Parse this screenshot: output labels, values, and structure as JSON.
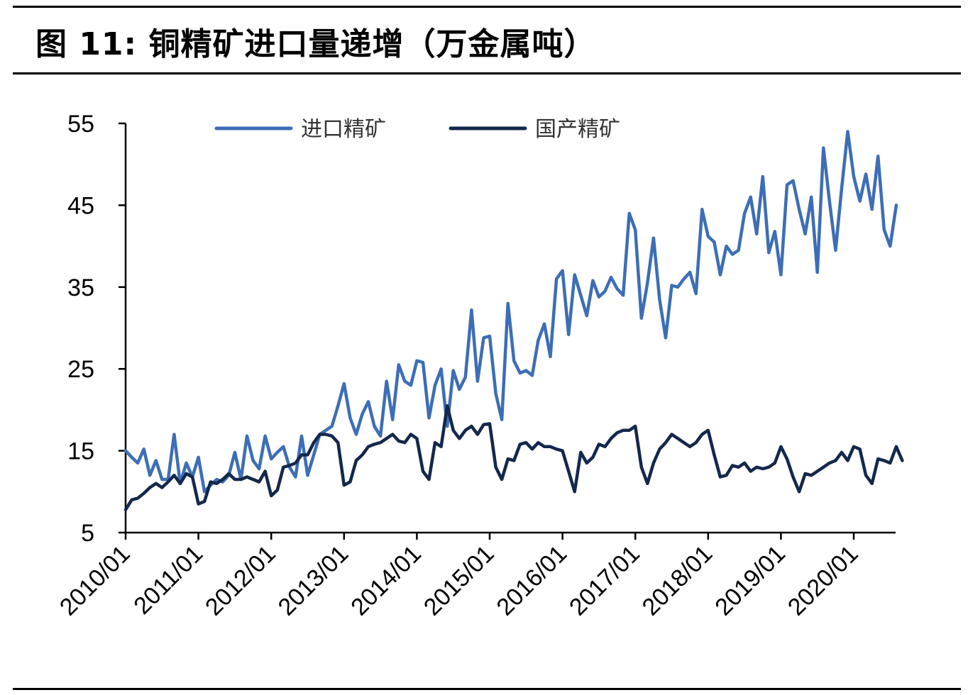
{
  "figure": {
    "title": "图 11:  铜精矿进口量递增（万金属吨）"
  },
  "colors": {
    "imported": "#3D6EB5",
    "domestic": "#13284B",
    "axis": "#000000"
  },
  "chart_data": {
    "type": "line",
    "title": "图 11:  铜精矿进口量递增（万金属吨）",
    "xlabel": "",
    "ylabel": "",
    "ylim": [
      5,
      55
    ],
    "yticks": [
      5,
      15,
      25,
      35,
      45,
      55
    ],
    "x_start": "2010/01",
    "x_end": "2020/07",
    "xtick_labels": [
      "2010/01",
      "2011/01",
      "2012/01",
      "2013/01",
      "2014/01",
      "2015/01",
      "2016/01",
      "2017/01",
      "2018/01",
      "2019/01",
      "2020/01"
    ],
    "legend": {
      "position": "top-left"
    },
    "grid": false,
    "series": [
      {
        "name": "进口精矿",
        "color": "#3D6EB5",
        "values": [
          15.0,
          14.2,
          13.5,
          15.2,
          12.0,
          13.8,
          11.5,
          11.5,
          17.0,
          11.0,
          13.5,
          11.8,
          14.2,
          10.0,
          10.8,
          11.5,
          11.2,
          12.0,
          14.8,
          11.5,
          16.8,
          13.8,
          12.8,
          16.8,
          14.0,
          14.8,
          15.5,
          13.0,
          11.8,
          16.8,
          12.0,
          14.5,
          17.0,
          17.5,
          18.0,
          20.5,
          23.2,
          19.0,
          17.0,
          19.5,
          21.0,
          18.0,
          16.8,
          23.5,
          18.8,
          25.5,
          23.5,
          23.0,
          26.0,
          25.8,
          19.0,
          23.0,
          25.0,
          18.0,
          24.8,
          22.5,
          24.0,
          32.2,
          23.5,
          28.8,
          29.0,
          22.0,
          18.8,
          33.0,
          26.0,
          24.5,
          24.8,
          24.2,
          28.5,
          30.5,
          26.5,
          36.0,
          37.0,
          29.2,
          36.5,
          34.0,
          31.5,
          35.8,
          33.8,
          34.5,
          36.2,
          34.8,
          34.0,
          44.0,
          42.0,
          31.2,
          35.5,
          41.0,
          33.5,
          28.8,
          35.2,
          35.0,
          36.0,
          36.8,
          34.2,
          44.5,
          41.2,
          40.5,
          36.5,
          40.0,
          39.0,
          39.5,
          44.0,
          46.0,
          41.5,
          48.5,
          39.2,
          41.8,
          36.5,
          47.5,
          48.0,
          44.5,
          41.5,
          46.0,
          36.8,
          52.0,
          45.5,
          39.5,
          47.0,
          54.0,
          48.5,
          45.5,
          48.8,
          44.5,
          51.0,
          42.0,
          40.0,
          45.0
        ]
      },
      {
        "name": "国产精矿",
        "color": "#13284B",
        "values": [
          7.8,
          9.0,
          9.2,
          9.8,
          10.5,
          11.0,
          10.5,
          11.2,
          12.0,
          11.0,
          12.2,
          11.8,
          8.5,
          8.8,
          11.2,
          11.0,
          11.5,
          12.2,
          11.5,
          11.5,
          11.8,
          11.5,
          11.2,
          12.5,
          9.5,
          10.2,
          13.0,
          13.2,
          13.5,
          14.5,
          14.5,
          16.0,
          17.0,
          17.0,
          16.8,
          16.0,
          10.8,
          11.2,
          13.8,
          14.5,
          15.5,
          15.8,
          16.0,
          16.5,
          17.0,
          16.2,
          16.0,
          17.0,
          16.5,
          12.5,
          11.5,
          16.0,
          15.5,
          20.5,
          17.5,
          16.5,
          17.5,
          18.0,
          17.0,
          18.2,
          18.3,
          13.0,
          11.5,
          14.0,
          13.8,
          15.8,
          16.0,
          15.2,
          16.0,
          15.5,
          15.5,
          15.2,
          15.0,
          12.5,
          10.0,
          14.8,
          13.5,
          14.2,
          15.8,
          15.5,
          16.5,
          17.2,
          17.5,
          17.5,
          18.0,
          13.0,
          11.0,
          13.5,
          15.2,
          16.0,
          17.0,
          16.5,
          16.0,
          15.5,
          16.0,
          17.0,
          17.5,
          14.5,
          11.8,
          12.0,
          13.2,
          13.0,
          13.5,
          12.5,
          13.0,
          12.8,
          13.0,
          13.5,
          15.5,
          14.0,
          11.8,
          10.0,
          12.2,
          12.0,
          12.5,
          13.0,
          13.5,
          13.8,
          14.8,
          13.8,
          15.5,
          15.2,
          12.0,
          11.0,
          14.0,
          13.8,
          13.5,
          15.5,
          13.8
        ]
      }
    ]
  }
}
